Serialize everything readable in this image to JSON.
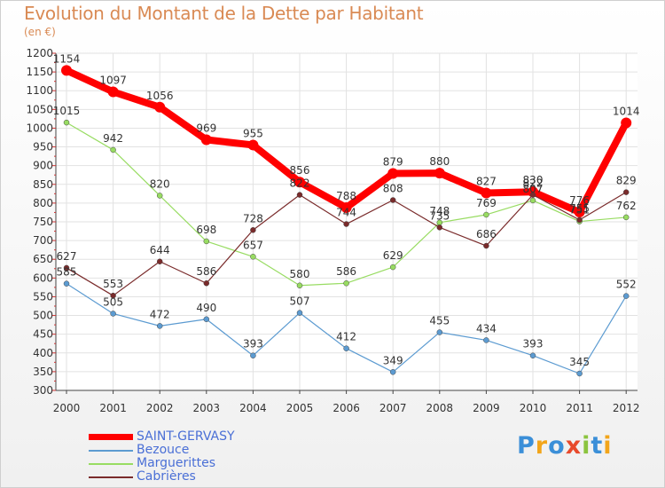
{
  "title": "Evolution du Montant de la Dette par Habitant",
  "subtitle": "(en €)",
  "logo": {
    "text": "Proxiti",
    "letters": [
      {
        "ch": "P",
        "color": "#3b8fd8"
      },
      {
        "ch": "r",
        "color": "#f2a51a"
      },
      {
        "ch": "o",
        "color": "#3b8fd8"
      },
      {
        "ch": "x",
        "color": "#e84a2c"
      },
      {
        "ch": "i",
        "color": "#8bc43f"
      },
      {
        "ch": "t",
        "color": "#3b8fd8"
      },
      {
        "ch": "i",
        "color": "#f2a51a"
      }
    ]
  },
  "chart_data": {
    "type": "line",
    "x": [
      "2000",
      "2001",
      "2002",
      "2003",
      "2004",
      "2005",
      "2006",
      "2007",
      "2008",
      "2009",
      "2010",
      "2011",
      "2012"
    ],
    "ylim": [
      300,
      1200
    ],
    "yticks": [
      "300",
      "350",
      "400",
      "450",
      "500",
      "550",
      "600",
      "650",
      "700",
      "750",
      "800",
      "850",
      "900",
      "950",
      "1000",
      "1050",
      "1100",
      "1150",
      "1200"
    ],
    "grid": true,
    "legend_position": "bottom-left",
    "series": [
      {
        "name": "SAINT-GERVASY",
        "color": "#ff0000",
        "values": [
          1154,
          1097,
          1056,
          969,
          955,
          856,
          788,
          879,
          880,
          827,
          830,
          776,
          1014
        ]
      },
      {
        "name": "Bezouce",
        "color": "#5c9bd1",
        "values": [
          585,
          505,
          472,
          490,
          393,
          507,
          412,
          349,
          455,
          434,
          393,
          345,
          552
        ]
      },
      {
        "name": "Marguerittes",
        "color": "#98dc62",
        "values": [
          1015,
          942,
          820,
          698,
          657,
          580,
          586,
          629,
          748,
          769,
          807,
          751,
          762
        ]
      },
      {
        "name": "Cabrières",
        "color": "#7a2b2b",
        "values": [
          627,
          553,
          644,
          586,
          728,
          822,
          744,
          808,
          735,
          686,
          822,
          755,
          829
        ]
      }
    ],
    "point_labels": [
      [
        "1154",
        "1097",
        "1056",
        "969",
        "955",
        "856",
        "788",
        "879",
        "880",
        "827",
        "830",
        "776",
        "1014"
      ],
      [
        "585",
        "505",
        "472",
        "490",
        "393",
        "507",
        "412",
        "349",
        "455",
        "434",
        "393",
        "345",
        "552"
      ],
      [
        "1015",
        "942",
        "820",
        "698",
        "657",
        "580",
        "586",
        "629",
        "748",
        "769",
        "807",
        "751",
        "762"
      ],
      [
        "627",
        "553",
        "644",
        "586",
        "728",
        "822",
        "744",
        "808",
        "735",
        "686",
        "822",
        "755",
        "829"
      ]
    ]
  }
}
